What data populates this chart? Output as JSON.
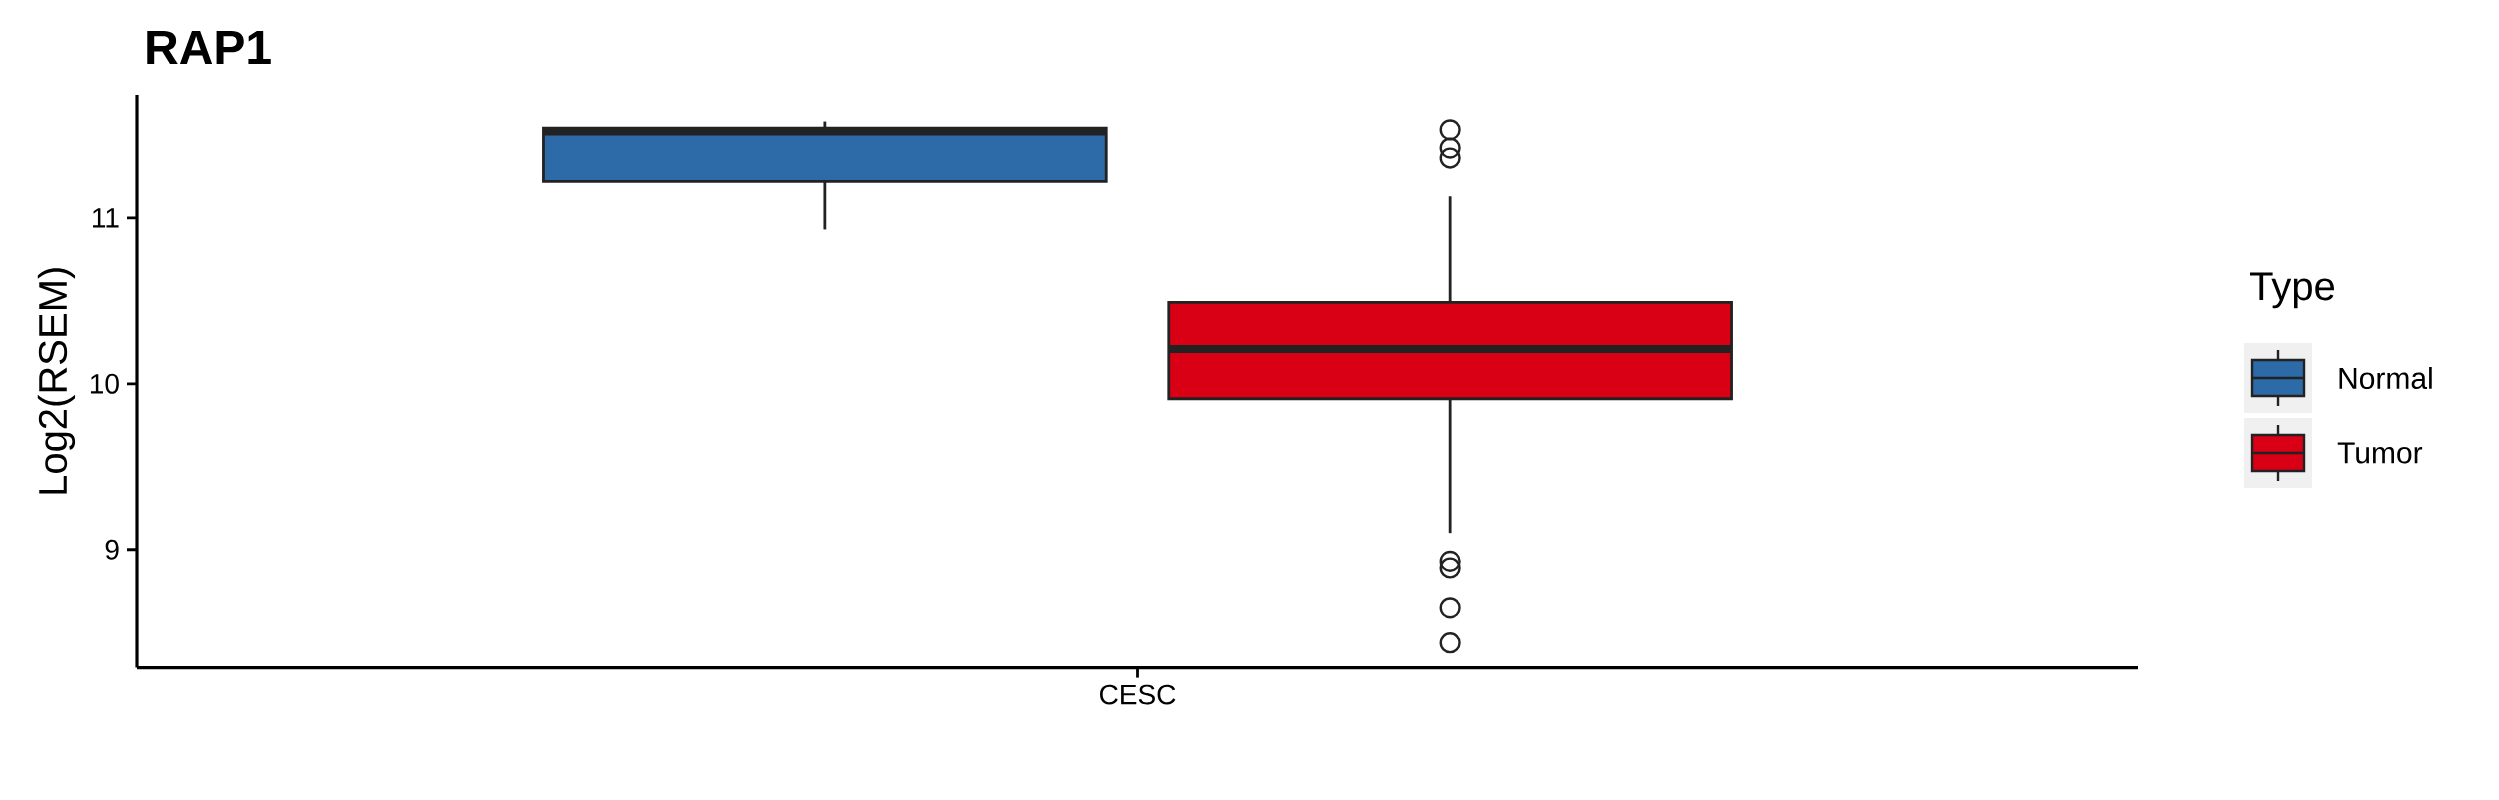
{
  "chart_data": {
    "type": "box",
    "title": "RAP1",
    "ylabel": "Log2(RSEM)",
    "legend_title": "Type",
    "categories": [
      "CESC"
    ],
    "ylim": [
      8.29,
      11.74
    ],
    "yticks": [
      9,
      10,
      11
    ],
    "legend": "right",
    "grid": false,
    "series": [
      {
        "name": "Normal",
        "color": "#2c6aa8",
        "boxes": [
          {
            "low": 10.93,
            "q1": 11.22,
            "median": 11.52,
            "q3": 11.54,
            "high": 11.58
          }
        ]
      },
      {
        "name": "Tumor",
        "color": "#d90016",
        "boxes": [
          {
            "low": 9.1,
            "q1": 9.91,
            "median": 10.21,
            "q3": 10.49,
            "high": 11.13,
            "outliers": [
              11.53,
              11.42,
              11.36,
              8.93,
              8.89,
              8.65,
              8.44
            ]
          }
        ]
      }
    ]
  }
}
